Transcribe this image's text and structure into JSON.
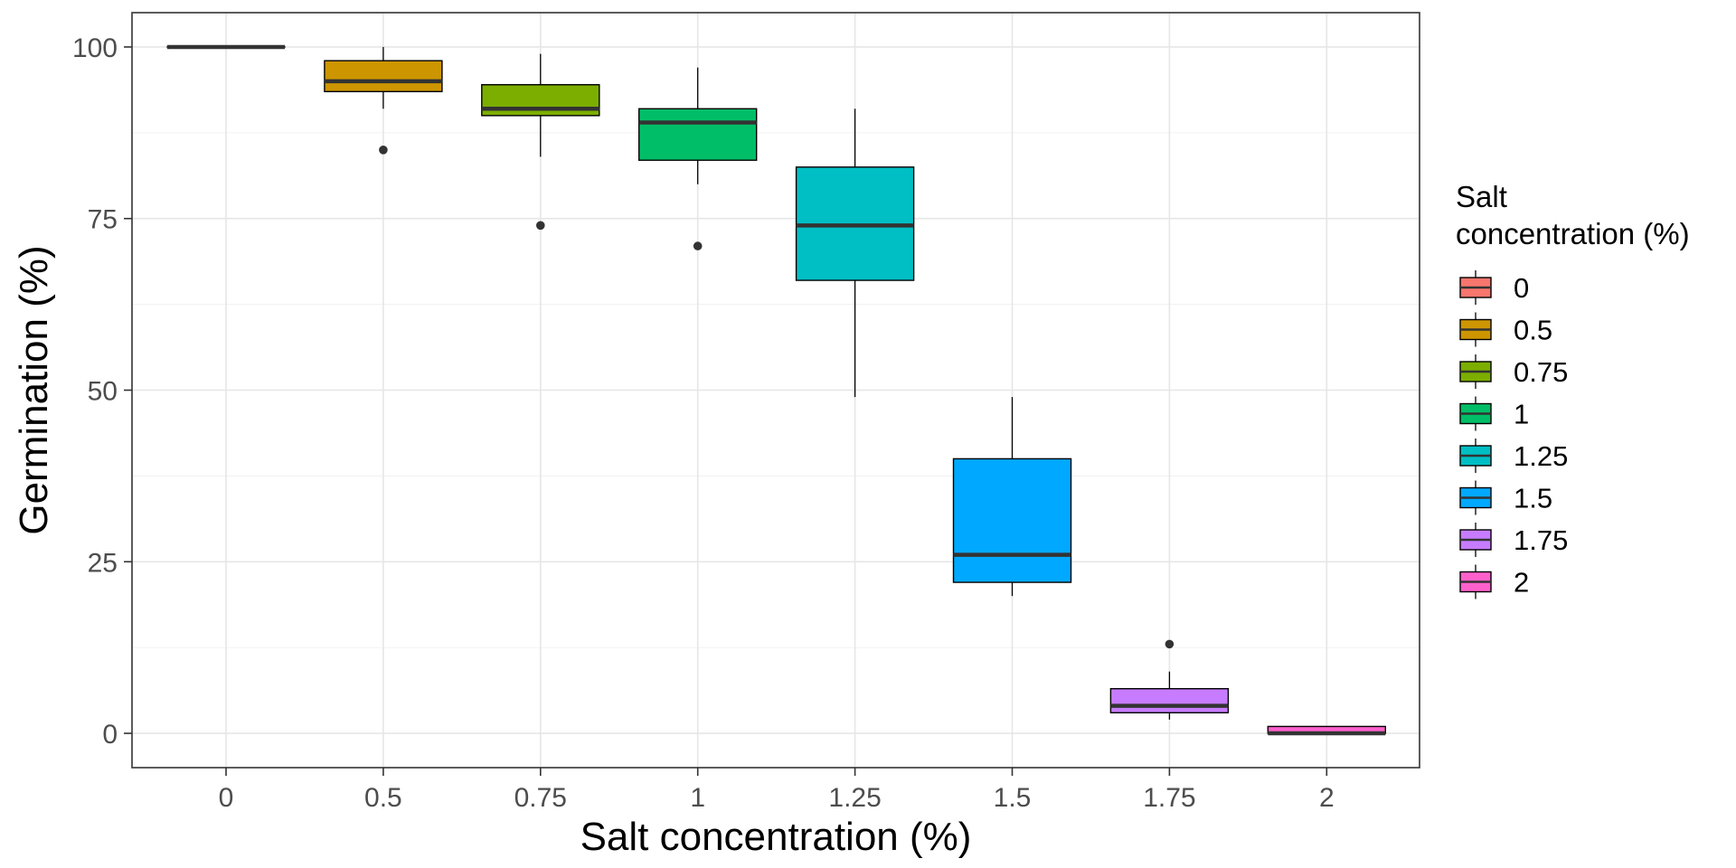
{
  "chart_data": {
    "type": "box",
    "categories": [
      "0",
      "0.5",
      "0.75",
      "1",
      "1.25",
      "1.5",
      "1.75",
      "2"
    ],
    "xlabel": "Salt concentration (%)",
    "ylabel": "Germination (%)",
    "ylim": [
      -5,
      105
    ],
    "yticks": [
      0,
      25,
      50,
      75,
      100
    ],
    "grid": true,
    "legend": {
      "title_lines": [
        "Salt",
        "concentration (%)"
      ],
      "position": "right"
    },
    "boxes": [
      {
        "label": "0",
        "color": "#F8766D",
        "min": 100,
        "q1": 100,
        "median": 100,
        "q3": 100,
        "max": 100,
        "outliers": []
      },
      {
        "label": "0.5",
        "color": "#CD9600",
        "min": 91,
        "q1": 93.5,
        "median": 95,
        "q3": 98,
        "max": 100,
        "outliers": [
          85
        ]
      },
      {
        "label": "0.75",
        "color": "#7CAE00",
        "min": 84,
        "q1": 90,
        "median": 91,
        "q3": 94.5,
        "max": 99,
        "outliers": [
          74
        ]
      },
      {
        "label": "1",
        "color": "#00BE67",
        "min": 80,
        "q1": 83.5,
        "median": 89,
        "q3": 91,
        "max": 97,
        "outliers": [
          71
        ]
      },
      {
        "label": "1.25",
        "color": "#00BFC4",
        "min": 49,
        "q1": 66,
        "median": 74,
        "q3": 82.5,
        "max": 91,
        "outliers": []
      },
      {
        "label": "1.5",
        "color": "#00A9FF",
        "min": 20,
        "q1": 22,
        "median": 26,
        "q3": 40,
        "max": 49,
        "outliers": []
      },
      {
        "label": "1.75",
        "color": "#C77CFF",
        "min": 2,
        "q1": 3,
        "median": 4,
        "q3": 6.5,
        "max": 9,
        "outliers": [
          13
        ]
      },
      {
        "label": "2",
        "color": "#FF61CC",
        "min": 0,
        "q1": 0,
        "median": 0,
        "q3": 1,
        "max": 1,
        "outliers": []
      }
    ]
  }
}
